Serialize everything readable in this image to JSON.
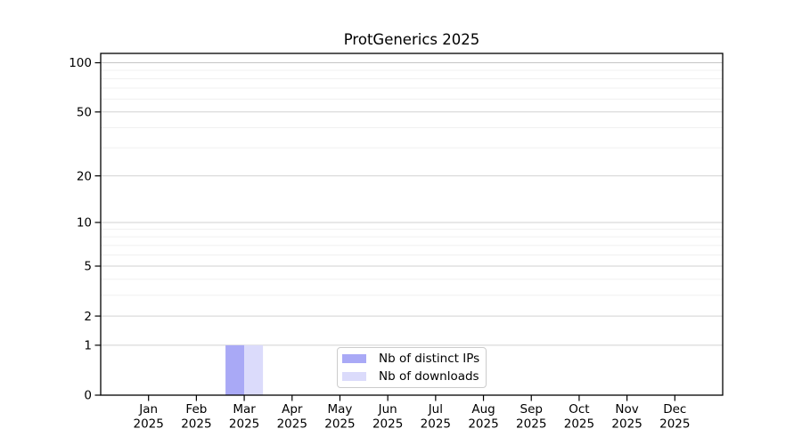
{
  "chart_data": {
    "type": "bar",
    "title": "ProtGenerics 2025",
    "year_label": "2025",
    "categories": [
      "Jan",
      "Feb",
      "Mar",
      "Apr",
      "May",
      "Jun",
      "Jul",
      "Aug",
      "Sep",
      "Oct",
      "Nov",
      "Dec"
    ],
    "series": [
      {
        "name": "Nb of distinct IPs",
        "color": "#a9a9f6",
        "values": [
          0,
          0,
          1,
          0,
          0,
          0,
          0,
          0,
          0,
          0,
          0,
          0
        ]
      },
      {
        "name": "Nb of downloads",
        "color": "#dbdbfb",
        "values": [
          0,
          0,
          1,
          0,
          0,
          0,
          0,
          0,
          0,
          0,
          0,
          0
        ]
      }
    ],
    "xlabel": "",
    "ylabel": "",
    "yscale": "log1p",
    "ylim": [
      0,
      114
    ],
    "yticks": [
      0,
      1,
      2,
      5,
      10,
      20,
      50,
      100
    ],
    "yticks_minor": [
      3,
      4,
      6,
      7,
      8,
      9,
      30,
      40,
      60,
      70,
      80,
      90
    ],
    "grid": "horizontal",
    "legend_position": "inside lower center"
  }
}
